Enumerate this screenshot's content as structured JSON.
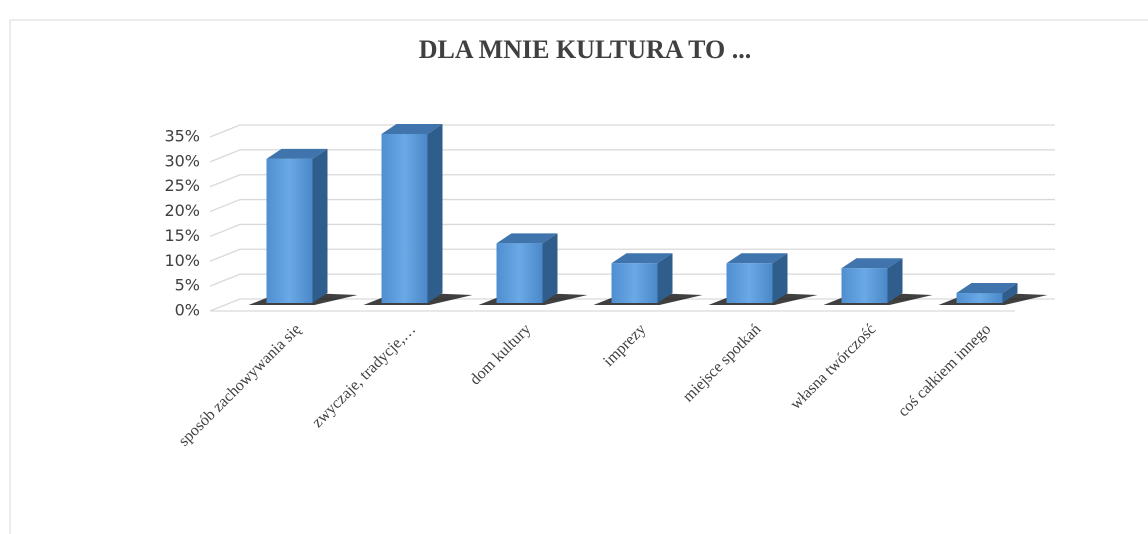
{
  "chart_data": {
    "type": "bar3d",
    "title": "DLA MNIE KULTURA TO ...",
    "categories": [
      "sposób zachowywania się",
      "zwyczaje, tradycje,…",
      "dom kultury",
      "imprezy",
      "miejsce spotkań",
      "własna twórczość",
      "coś całkiem innego"
    ],
    "values": [
      29,
      34,
      12,
      8,
      8,
      7,
      2
    ],
    "color": "#5b9bd5",
    "ylim": [
      0,
      35
    ],
    "yticks": [
      {
        "value": 0,
        "label": "0%"
      },
      {
        "value": 5,
        "label": "5%"
      },
      {
        "value": 10,
        "label": "10%"
      },
      {
        "value": 15,
        "label": "15%"
      },
      {
        "value": 20,
        "label": "20%"
      },
      {
        "value": 25,
        "label": "25%"
      },
      {
        "value": 30,
        "label": "30%"
      },
      {
        "value": 35,
        "label": "35%"
      }
    ],
    "grid": true
  }
}
